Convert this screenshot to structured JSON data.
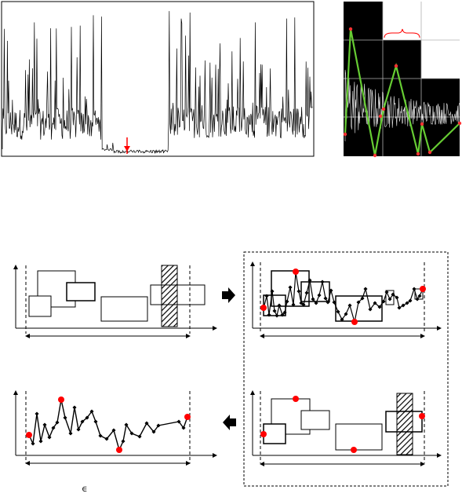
{
  "figure": {
    "epsilon_symbol": "∈",
    "colors": {
      "line": "#000000",
      "highlight": "#ff0000",
      "green_path": "#66cc33",
      "grid_bg": "#000000",
      "grid_line": "#bbbbbb",
      "brace": "#ff0000"
    },
    "panels": [
      {
        "id": "raw-signal",
        "kind": "time-series"
      },
      {
        "id": "grid-zoom",
        "kind": "grid-with-path"
      },
      {
        "id": "segmented-rectangles",
        "kind": "diagram"
      },
      {
        "id": "rectangles-with-points",
        "kind": "diagram"
      },
      {
        "id": "pruned-rectangles",
        "kind": "diagram"
      },
      {
        "id": "final-polyline",
        "kind": "diagram"
      }
    ],
    "arrows": [
      {
        "from": "segmented-rectangles",
        "to": "rectangles-with-points",
        "direction": "right"
      },
      {
        "from": "pruned-rectangles",
        "to": "final-polyline",
        "direction": "left"
      }
    ]
  }
}
